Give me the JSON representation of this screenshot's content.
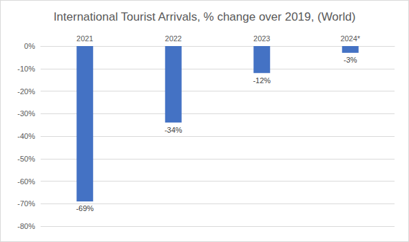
{
  "chart_data": {
    "type": "bar",
    "title": "International Tourist Arrivals, % change over 2019, (World)",
    "categories": [
      "2021",
      "2022",
      "2023",
      "2024*"
    ],
    "values": [
      -69,
      -34,
      -12,
      -3
    ],
    "value_labels": [
      "-69%",
      "-34%",
      "-12%",
      "-3%"
    ],
    "color": "#4472c4",
    "ylim": [
      -80,
      0
    ],
    "yticks": [
      {
        "value": -80,
        "label": "-80%"
      },
      {
        "value": -70,
        "label": "-70%"
      },
      {
        "value": -60,
        "label": "-60%"
      },
      {
        "value": -50,
        "label": "-50%"
      },
      {
        "value": -40,
        "label": "-40%"
      },
      {
        "value": -30,
        "label": "-30%"
      },
      {
        "value": -20,
        "label": "-20%"
      },
      {
        "value": -10,
        "label": "-10%"
      },
      {
        "value": 0,
        "label": "0%"
      }
    ],
    "grid": true,
    "data_labels": true
  }
}
